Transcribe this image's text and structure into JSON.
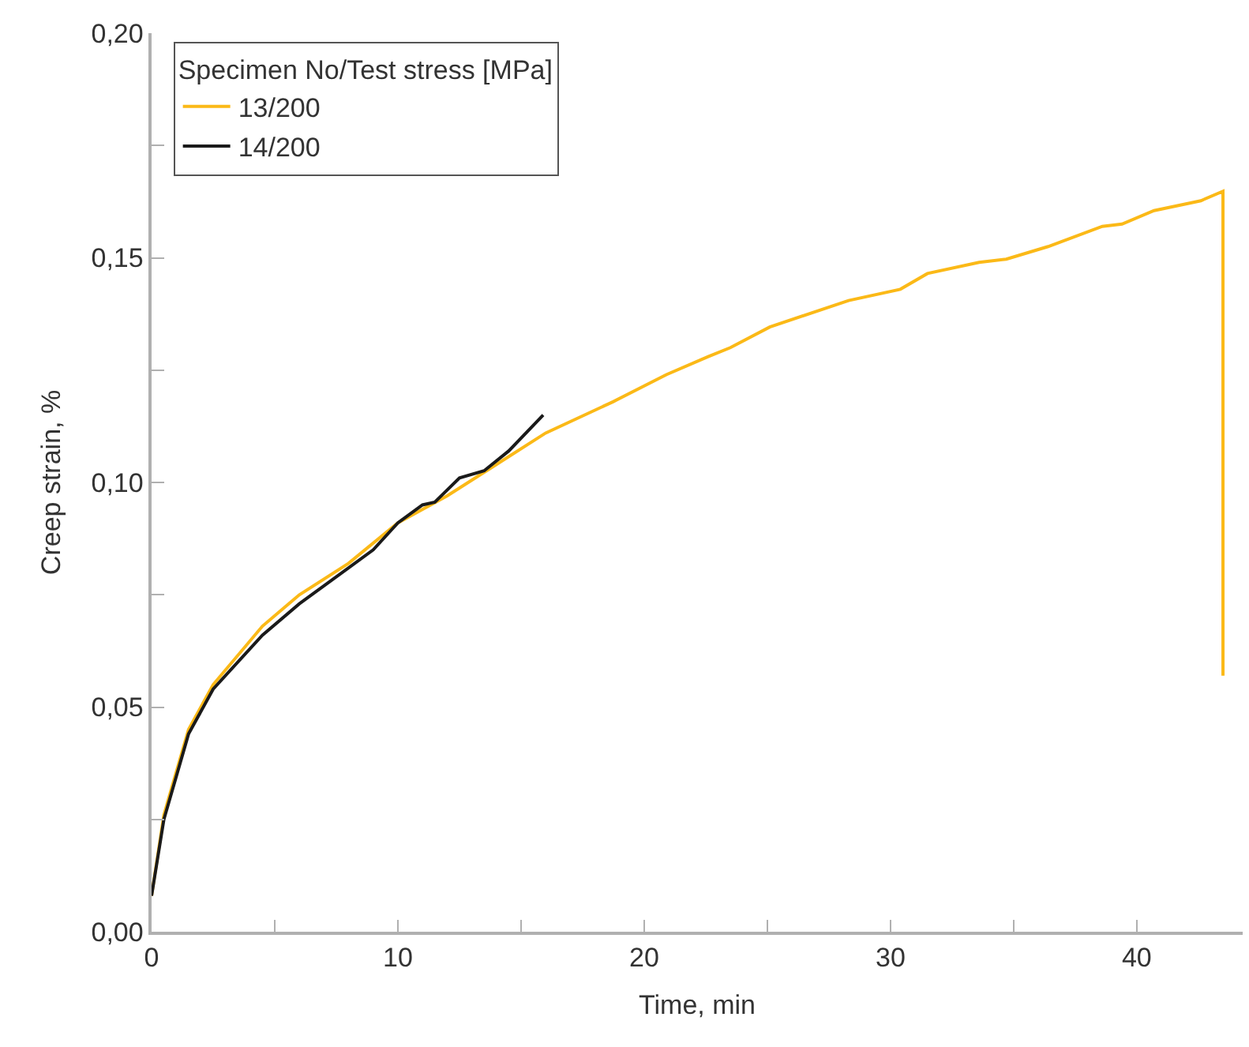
{
  "chart_data": {
    "type": "line",
    "xlabel": "Time, min",
    "ylabel": "Creep strain, %",
    "legend_title": "Specimen No/Test stress [MPa]",
    "legend": "top left",
    "line_style": "solid",
    "marker": "none",
    "xlim": [
      0,
      44.3
    ],
    "ylim": [
      0,
      0.2
    ],
    "xticks": [
      0,
      {
        "value": 5,
        "label": null
      },
      10,
      {
        "value": 15,
        "label": null
      },
      20,
      {
        "value": 25,
        "label": null
      },
      30,
      {
        "value": 35,
        "label": null
      },
      40
    ],
    "yticks": [
      {
        "value": 0,
        "label": "0,00"
      },
      {
        "value": 0.025,
        "label": null
      },
      {
        "value": 0.05,
        "label": "0,05"
      },
      {
        "value": 0.075,
        "label": null
      },
      {
        "value": 0.1,
        "label": "0,10"
      },
      {
        "value": 0.125,
        "label": null
      },
      {
        "value": 0.15,
        "label": "0,15"
      },
      {
        "value": 0.175,
        "label": null
      },
      {
        "value": 0.2,
        "label": "0,20"
      }
    ],
    "series": [
      {
        "name": "13/200",
        "color": "#fbb917",
        "x": [
          0,
          0.5,
          1.5,
          2.5,
          4.5,
          6,
          8,
          10,
          12,
          14,
          16,
          18.75,
          20.9,
          22.6,
          23.5,
          25.1,
          28.3,
          30.4,
          31.5,
          33.6,
          34.7,
          36.4,
          38.6,
          39.4,
          40.7,
          42.6,
          43.5,
          43.5
        ],
        "values": [
          0.008,
          0.026,
          0.045,
          0.055,
          0.068,
          0.075,
          0.082,
          0.091,
          0.097,
          0.104,
          0.111,
          0.118,
          0.124,
          0.128,
          0.13,
          0.1346,
          0.1405,
          0.143,
          0.1465,
          0.149,
          0.1497,
          0.1525,
          0.157,
          0.1575,
          0.1605,
          0.1627,
          0.1648,
          0.057
        ]
      },
      {
        "name": "14/200",
        "color": "#1a1a1a",
        "x": [
          0,
          0.5,
          1.5,
          2.5,
          4.5,
          6,
          8,
          9,
          10,
          11,
          11.5,
          12.5,
          13.5,
          14.5,
          15.9
        ],
        "values": [
          0.008,
          0.025,
          0.044,
          0.054,
          0.066,
          0.073,
          0.081,
          0.085,
          0.091,
          0.095,
          0.0956,
          0.101,
          0.1026,
          0.107,
          0.115
        ]
      }
    ]
  }
}
